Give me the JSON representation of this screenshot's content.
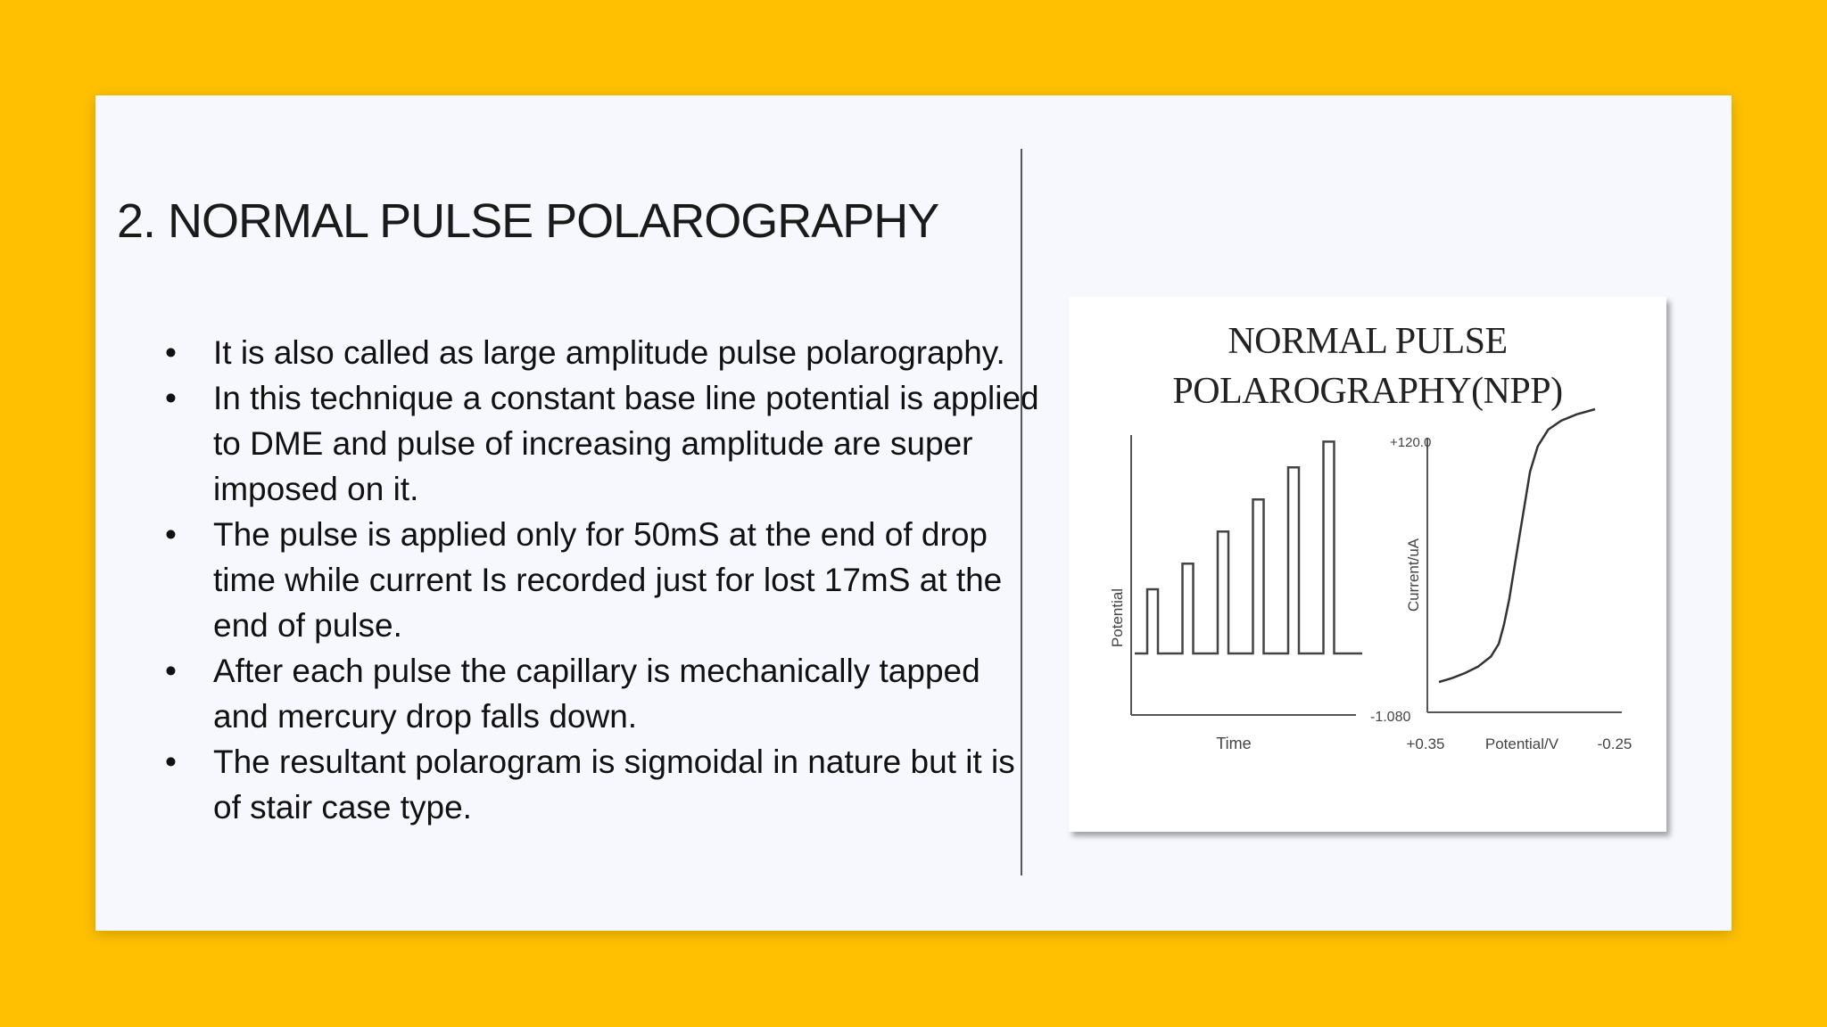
{
  "slide": {
    "title": "2. NORMAL PULSE POLAROGRAPHY",
    "bullets": [
      "It is also called as large amplitude pulse polarography.",
      "In this technique a constant base line potential is applied to DME and pulse of increasing amplitude are super imposed on it.",
      "The pulse is applied only for 50mS at the end of drop time while current Is recorded just for lost 17mS at the end of pulse.",
      "After each pulse the capillary is mechanically tapped and mercury drop falls down.",
      "The resultant polarogram is sigmoidal in nature but it is of stair case type."
    ],
    "bullet_symbol": "•"
  },
  "figure": {
    "title_line1": "NORMAL PULSE",
    "title_line2": "POLAROGRAPHY(NPP)"
  },
  "chart_data": [
    {
      "type": "line",
      "title": "",
      "xlabel": "Time",
      "ylabel": "Potential",
      "description_kind": "pulse train",
      "baseline": 0,
      "pulse_amplitudes": [
        1,
        1.4,
        1.9,
        2.4,
        2.9,
        3.3
      ],
      "grid": false
    },
    {
      "type": "line",
      "title": "",
      "xlabel": "Potential/V",
      "ylabel": "Current/uA",
      "x_ticks": [
        "+0.35",
        "-0.25"
      ],
      "y_ticks": [
        "+120.0",
        "-1.080"
      ],
      "x": [
        0.35,
        0.3,
        0.25,
        0.2,
        0.15,
        0.12,
        0.1,
        0.08,
        0.06,
        0.04,
        0.02,
        0.0,
        -0.03,
        -0.07,
        -0.12,
        -0.18,
        -0.25
      ],
      "y": [
        0,
        3,
        7,
        12,
        20,
        30,
        45,
        65,
        90,
        115,
        140,
        165,
        185,
        198,
        205,
        210,
        214
      ],
      "grid": false
    }
  ]
}
